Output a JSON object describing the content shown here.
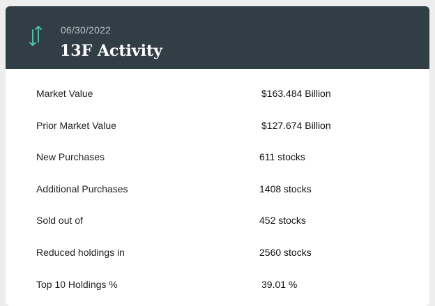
{
  "header": {
    "date": "06/30/2022",
    "title": "13F Activity",
    "icon": "up-down-arrows-icon",
    "accent_color": "#4dbfa6",
    "background_color": "#323e46"
  },
  "rows": [
    {
      "label": "Market Value",
      "value": "$163.484 Billion"
    },
    {
      "label": "Prior Market Value",
      "value": "$127.674 Billion"
    },
    {
      "label": "New Purchases",
      "value": "611 stocks"
    },
    {
      "label": "Additional Purchases",
      "value": "1408 stocks"
    },
    {
      "label": "Sold out of",
      "value": "452 stocks"
    },
    {
      "label": "Reduced holdings in",
      "value": "2560 stocks"
    },
    {
      "label": "Top 10 Holdings %",
      "value": "39.01 %"
    }
  ]
}
